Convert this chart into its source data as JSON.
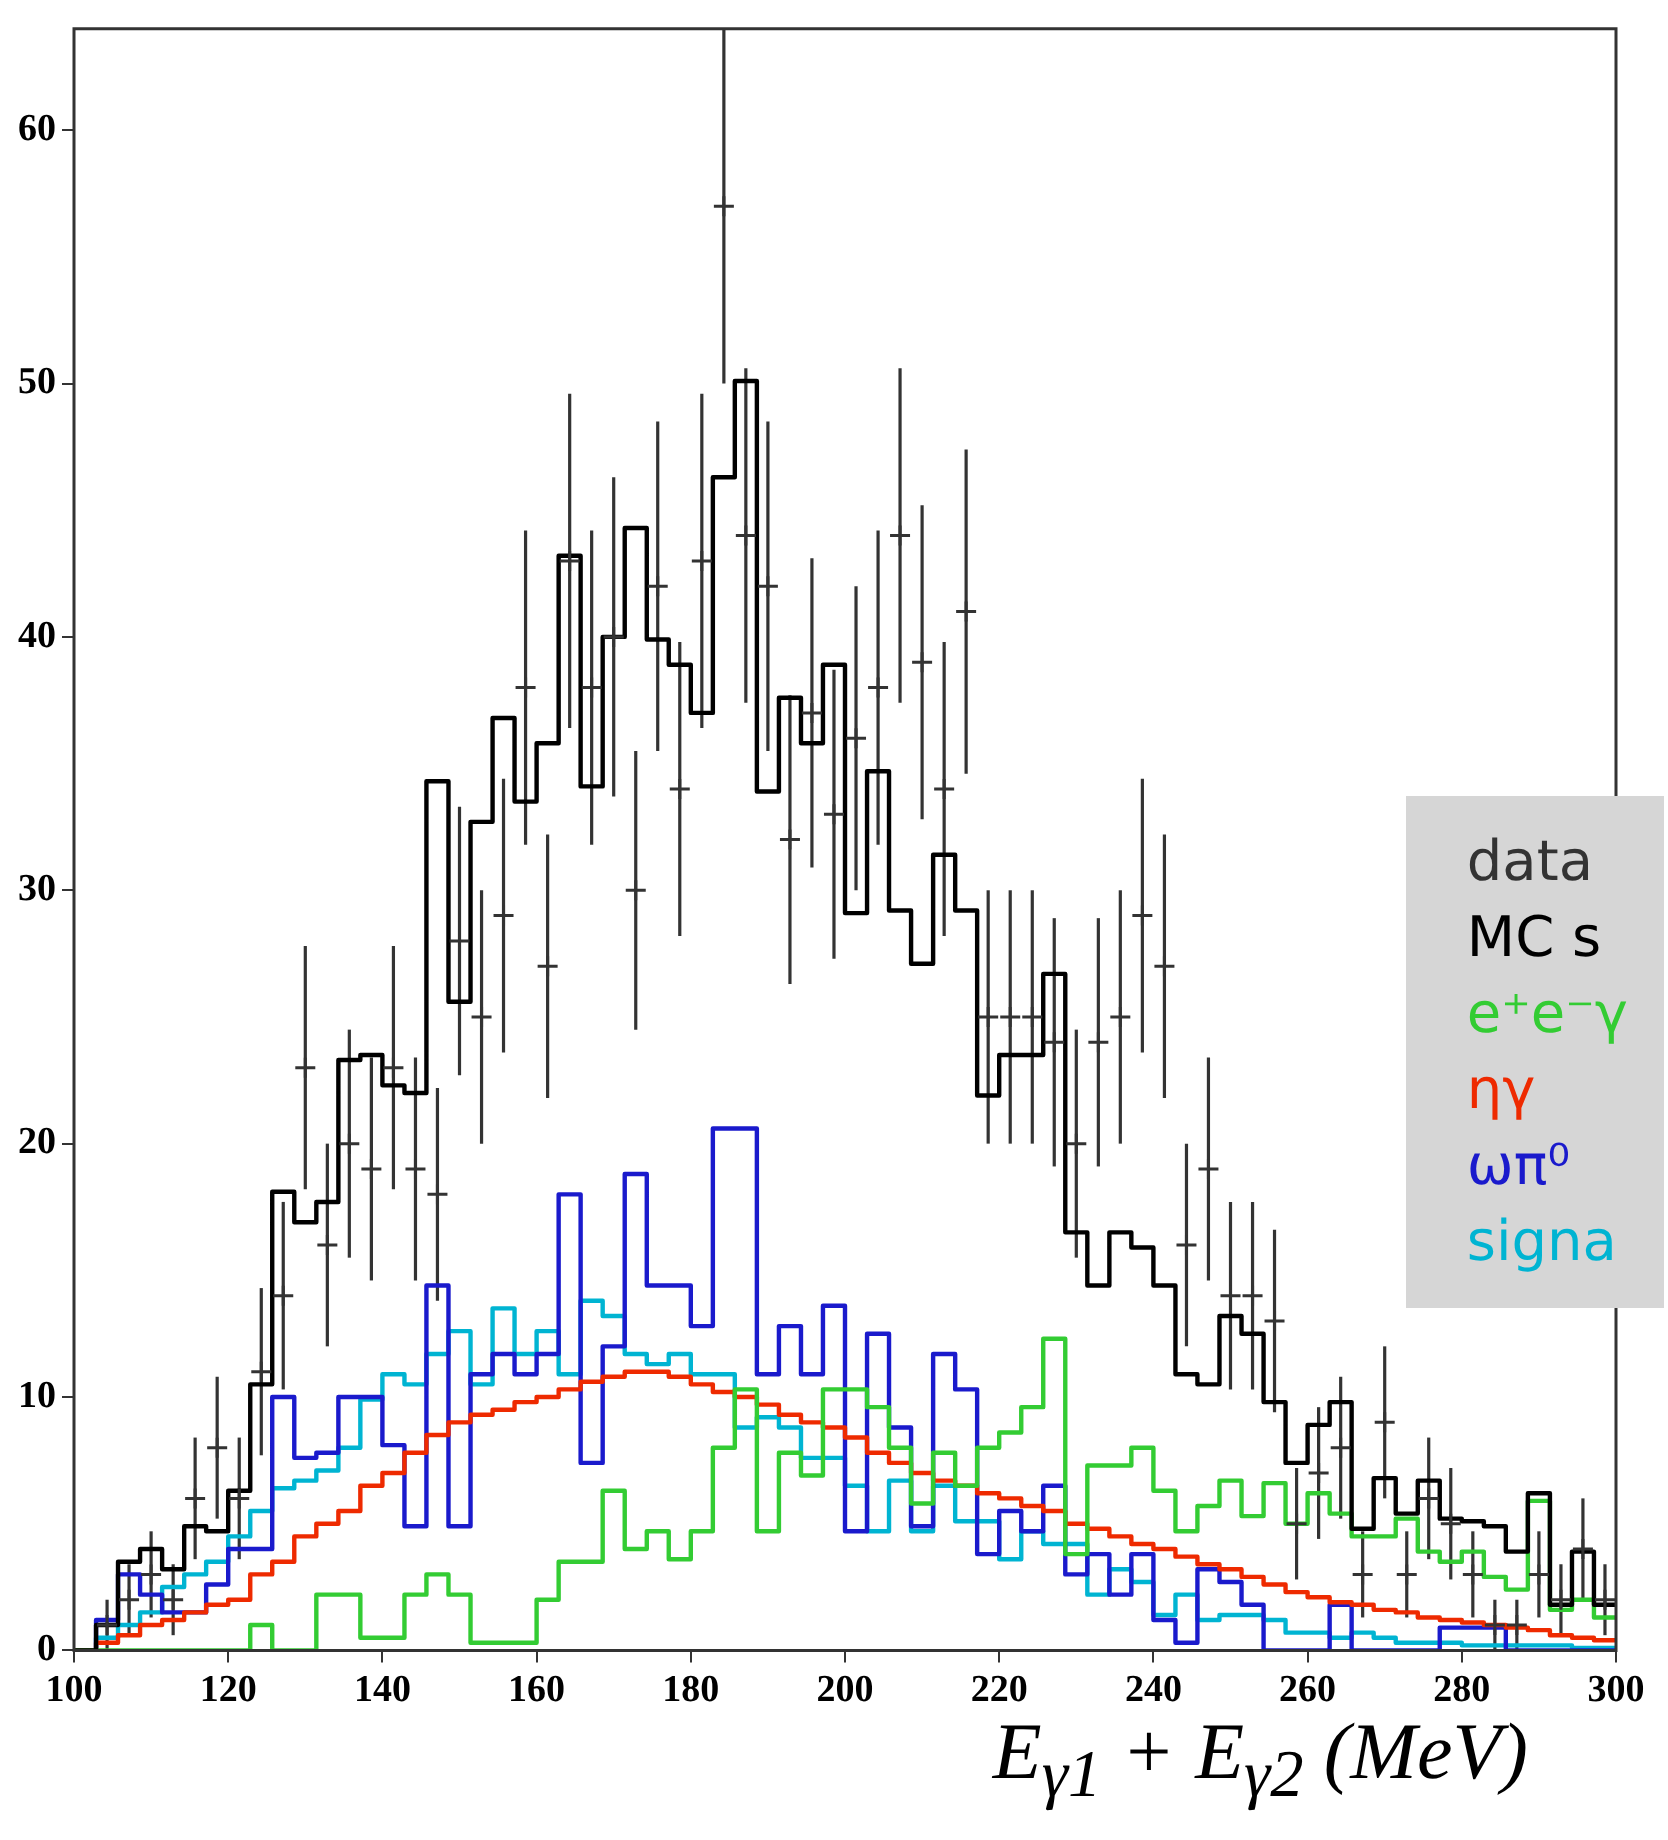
{
  "chart_data": {
    "type": "histogram",
    "xlabel": "E$_{γ1}$ + E$_{γ2}$  (MeV)",
    "xlim": [
      100,
      300
    ],
    "xticks": [
      100,
      120,
      140,
      160,
      180,
      200,
      220,
      240,
      260,
      280,
      300
    ],
    "ylim": [
      0,
      64
    ],
    "yticks": [
      0,
      10,
      20,
      30,
      40,
      50,
      60
    ],
    "grid": false,
    "legend": "right",
    "line_style": "solid",
    "bins": [
      100,
      102.86,
      105.71,
      108.57,
      111.43,
      114.29,
      117.14,
      120,
      122.86,
      125.71,
      128.57,
      131.43,
      134.29,
      137.14,
      140,
      142.86,
      145.71,
      148.57,
      151.43,
      154.29,
      157.14,
      160,
      162.86,
      165.71,
      168.57,
      171.43,
      174.29,
      177.14,
      180,
      182.86,
      185.71,
      188.57,
      191.43,
      194.29,
      197.14,
      200,
      202.86,
      205.71,
      208.57,
      211.43,
      214.29,
      217.14,
      220,
      222.86,
      225.71,
      228.57,
      231.43,
      234.29,
      237.14,
      240,
      242.86,
      245.71,
      248.57,
      251.43,
      254.29,
      257.14,
      260,
      262.86,
      265.71,
      268.57,
      271.43,
      274.29,
      277.14,
      280,
      282.86,
      285.71,
      288.57,
      291.43,
      294.29,
      297.14,
      300
    ],
    "series": [
      {
        "name": "data",
        "type": "scatter",
        "marker": "cross",
        "color": "#333333",
        "x": [
          104.29,
          107.14,
          110,
          112.86,
          115.71,
          118.57,
          121.43,
          124.29,
          127.14,
          130,
          132.86,
          135.71,
          138.57,
          141.43,
          144.29,
          147.14,
          150,
          152.86,
          155.71,
          158.57,
          161.43,
          164.29,
          167.14,
          170,
          172.86,
          175.71,
          178.57,
          181.43,
          184.29,
          187.14,
          190,
          192.86,
          195.71,
          198.57,
          201.43,
          204.29,
          207.14,
          210,
          212.86,
          215.71,
          218.57,
          221.43,
          224.29,
          227.14,
          230,
          232.86,
          235.71,
          238.57,
          241.43,
          244.29,
          247.14,
          250,
          252.86,
          255.71,
          258.57,
          261.43,
          264.29,
          267.14,
          270,
          272.86,
          275.71,
          278.57,
          281.43,
          284.29,
          287.14,
          290,
          292.86,
          295.71,
          298.57
        ],
        "values": [
          1,
          2,
          3,
          2,
          6,
          8,
          6,
          11,
          14,
          23,
          16,
          20,
          19,
          23,
          19,
          18,
          28,
          25,
          29,
          38,
          27,
          43,
          38,
          40,
          30,
          42,
          34,
          43,
          57,
          44,
          42,
          32,
          37,
          33,
          36,
          38,
          44,
          39,
          34,
          41,
          25,
          25,
          25,
          24,
          20,
          24,
          25,
          29,
          27,
          16,
          19,
          14,
          14,
          13,
          5,
          7,
          8,
          3,
          9,
          3,
          6,
          5,
          3,
          1,
          1,
          3,
          2,
          4,
          2
        ],
        "errors": [
          1,
          1.4,
          1.7,
          1.4,
          2.4,
          2.8,
          2.4,
          3.3,
          3.7,
          4.8,
          4,
          4.5,
          4.4,
          4.8,
          4.4,
          4.2,
          5.3,
          5,
          5.4,
          6.2,
          5.2,
          6.6,
          6.2,
          6.3,
          5.5,
          6.5,
          5.8,
          6.6,
          7,
          6.6,
          6.5,
          5.7,
          6.1,
          5.7,
          6,
          6.2,
          6.6,
          6.2,
          5.8,
          6.4,
          5,
          5,
          5,
          4.9,
          4.5,
          4.9,
          5,
          5.4,
          5.2,
          4,
          4.4,
          3.7,
          3.7,
          3.6,
          2.2,
          2.6,
          2.8,
          1.7,
          3,
          1.7,
          2.4,
          2.2,
          1.7,
          1,
          1,
          1.7,
          1.4,
          2,
          1.4
        ]
      },
      {
        "name": "MC s",
        "color": "#000000",
        "values": [
          0,
          1,
          3.5,
          4,
          3.2,
          4.9,
          4.7,
          6.3,
          10.5,
          18.1,
          16.9,
          17.7,
          23.3,
          23.5,
          22.3,
          22,
          34.3,
          25.6,
          32.7,
          36.8,
          33.5,
          35.8,
          43.2,
          34.1,
          40,
          44.3,
          39.9,
          38.9,
          37,
          46.3,
          50.1,
          33.9,
          37.6,
          35.8,
          38.9,
          29.1,
          34.7,
          29.2,
          27.1,
          31.4,
          29.2,
          21.9,
          23.5,
          23.5,
          26.7,
          16.5,
          14.4,
          16.5,
          15.9,
          14.4,
          10.9,
          10.5,
          13.2,
          12.5,
          9.8,
          7.4,
          8.9,
          9.8,
          4.8,
          6.8,
          5.4,
          6.7,
          5.2,
          5.1,
          4.9,
          3.9,
          6.2,
          1.8,
          3.9,
          1.8
        ]
      },
      {
        "name": "e⁺e⁻γ",
        "color": "#33cc33",
        "values": [
          0,
          0,
          0,
          0,
          0,
          0,
          0,
          0,
          1,
          0,
          0,
          2.2,
          2.2,
          0.5,
          0.5,
          2.2,
          3,
          2.2,
          0.3,
          0.3,
          0.3,
          2,
          3.5,
          3.5,
          6.3,
          4,
          4.7,
          3.6,
          4.7,
          8,
          10.3,
          4.7,
          7.8,
          6.9,
          10.3,
          10.3,
          9.6,
          8,
          5.8,
          7.8,
          6.5,
          8,
          8.6,
          9.6,
          12.3,
          3.8,
          7.3,
          7.3,
          8,
          6.3,
          4.7,
          5.7,
          6.7,
          5.3,
          6.6,
          5,
          6.2,
          5.4,
          4.5,
          4.5,
          5.2,
          3.9,
          3.5,
          3.9,
          2.9,
          2.4,
          5.9,
          1.6,
          2,
          1.3
        ]
      },
      {
        "name": "ηγ",
        "color": "#ee2a00",
        "values": [
          0,
          0.3,
          0.6,
          1,
          1.2,
          1.5,
          1.8,
          2,
          3,
          3.5,
          4.5,
          5,
          5.5,
          6.5,
          7,
          7.8,
          8.5,
          9,
          9.3,
          9.5,
          9.8,
          10,
          10.3,
          10.6,
          10.8,
          11,
          11,
          10.8,
          10.5,
          10.2,
          10,
          9.7,
          9.3,
          9,
          8.8,
          8.4,
          7.8,
          7.4,
          7,
          6.7,
          6.5,
          6.2,
          6,
          5.7,
          5.5,
          5,
          4.8,
          4.5,
          4.2,
          4,
          3.7,
          3.4,
          3.2,
          2.9,
          2.6,
          2.3,
          2.1,
          1.9,
          1.8,
          1.6,
          1.5,
          1.3,
          1.2,
          1.1,
          1,
          0.9,
          0.8,
          0.6,
          0.5,
          0.4
        ]
      },
      {
        "name": "ωπ⁰",
        "color": "#1a1acc",
        "values": [
          0,
          1.2,
          3,
          2.2,
          1.5,
          1.5,
          2.6,
          4,
          4,
          10,
          7.6,
          7.8,
          10,
          10,
          8.1,
          4.9,
          14.4,
          4.9,
          10.9,
          11.7,
          10.9,
          11.7,
          18,
          7.4,
          12,
          18.8,
          14.4,
          14.4,
          12.8,
          20.6,
          20.6,
          10.9,
          12.8,
          10.9,
          13.6,
          4.7,
          12.5,
          8.8,
          4.9,
          11.7,
          10.3,
          3.8,
          5.5,
          4.7,
          6.5,
          3,
          3.8,
          2.2,
          3.8,
          1.2,
          0.3,
          3.2,
          2.7,
          1.8,
          0,
          0,
          0,
          1.8,
          0,
          0,
          0,
          0,
          0.9,
          0.9,
          0.9,
          0,
          0,
          0,
          0,
          0
        ]
      },
      {
        "name": "signa",
        "color": "#00b4d2",
        "values": [
          0,
          0.5,
          1,
          1.5,
          2.5,
          3,
          3.5,
          4.5,
          5.5,
          6.4,
          6.7,
          7.1,
          8,
          9.9,
          10.9,
          10.5,
          11.7,
          12.6,
          10.5,
          13.5,
          11.7,
          12.6,
          10.9,
          13.8,
          13.2,
          11.7,
          11.3,
          11.7,
          10.9,
          10.9,
          8.8,
          9.2,
          8.8,
          7.6,
          7.6,
          6.5,
          4.7,
          6.7,
          4.7,
          6.5,
          5.1,
          5.1,
          3.6,
          4.7,
          4.2,
          4.2,
          2.2,
          3.2,
          2.7,
          1.4,
          2.2,
          1.2,
          1.4,
          1.4,
          1.2,
          0.7,
          0.7,
          0.5,
          0.7,
          0.5,
          0.3,
          0.3,
          0.3,
          0.2,
          0.2,
          0.2,
          0.2,
          0.2,
          0.1,
          0.1
        ]
      }
    ]
  }
}
